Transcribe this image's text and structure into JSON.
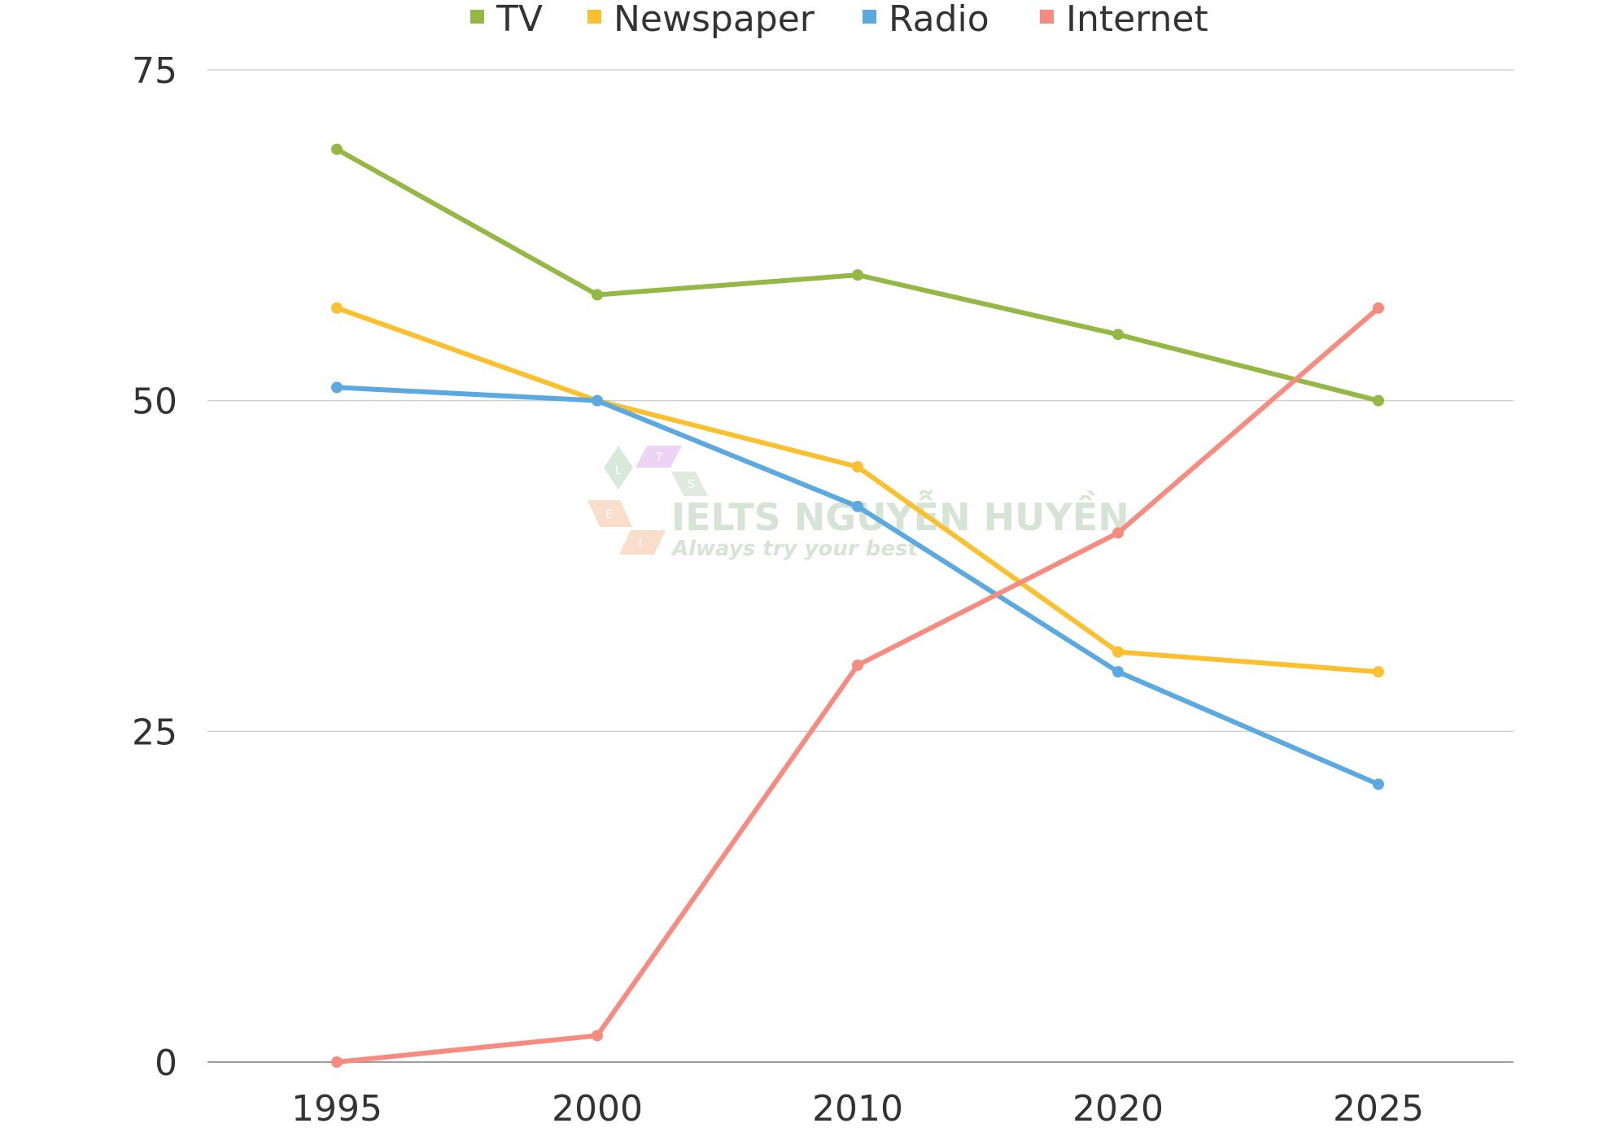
{
  "chart_data": {
    "type": "line",
    "title": "",
    "xlabel": "",
    "ylabel": "",
    "categories": [
      "1995",
      "2000",
      "2010",
      "2020",
      "2025"
    ],
    "ylim": [
      0,
      75
    ],
    "yticks": [
      0,
      25,
      50,
      75
    ],
    "grid": true,
    "legend_position": "top",
    "series": [
      {
        "name": "TV",
        "color": "#94b843",
        "values": [
          69,
          58,
          59.5,
          55,
          50
        ]
      },
      {
        "name": "Newspaper",
        "color": "#fbc02d",
        "values": [
          57,
          50,
          45,
          31,
          29.5
        ]
      },
      {
        "name": "Radio",
        "color": "#5aa9e0",
        "values": [
          51,
          50,
          42,
          29.5,
          21
        ]
      },
      {
        "name": "Internet",
        "color": "#f78b80",
        "values": [
          0,
          2,
          30,
          40,
          57
        ]
      }
    ]
  },
  "watermark": {
    "title": "IELTS NGUYỄN HUYỀN",
    "subtitle": "Always try your best",
    "letters": [
      "L",
      "T",
      "S",
      "E",
      "I"
    ]
  }
}
